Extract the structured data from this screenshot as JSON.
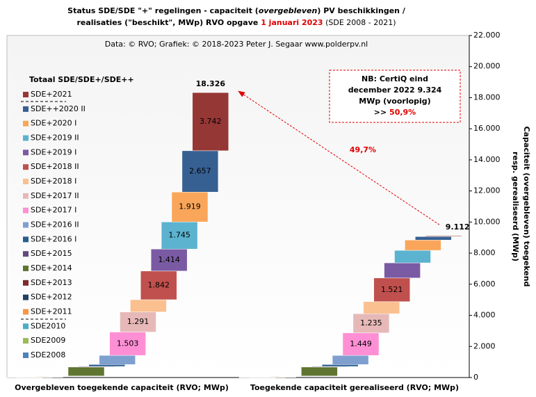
{
  "chart_data": {
    "type": "waterfall",
    "title": [
      "Status SDE/SDE \"+\" regelingen - capaciteit (",
      "overgebleven",
      ") PV beschikkingen /",
      "realisaties (\"beschikt\", MWp) RVO opgave ",
      "1 januari 2023",
      " (SDE 2008 - 2021)"
    ],
    "subtitle": "Data: © RVO;  Grafiek:  © 2018-2023 Peter J. Segaar www.polderpv.nl",
    "legend_title": "Totaal SDE/SDE+/SDE++",
    "y_label": [
      "Capaciteit (overgebleven) toegekend",
      "resp. gerealiseerd (MWp)"
    ],
    "categories": [
      "Overgebleven toegekende capaciteit (RVO; MWp)",
      "Toegekende capaciteit gerealiseerd (RVO; MWp)"
    ],
    "series": [
      {
        "name": "SDE2008",
        "color": "#4f81bd",
        "values": [
          20,
          20
        ],
        "value_labels": [
          null,
          null
        ]
      },
      {
        "name": "SDE2009",
        "color": "#9bbb59",
        "values": [
          5,
          5
        ],
        "value_labels": [
          null,
          null
        ]
      },
      {
        "name": "SDE2010",
        "color": "#4bacc6",
        "values": [
          10,
          10
        ],
        "value_labels": [
          null,
          null
        ]
      },
      {
        "name": "SDE+2011",
        "color": "#f79646",
        "values": [
          30,
          30
        ],
        "value_labels": [
          null,
          null
        ]
      },
      {
        "name": "SDE+2012",
        "color": "#244061",
        "values": [
          15,
          15
        ],
        "value_labels": [
          null,
          null
        ]
      },
      {
        "name": "SDE+2013",
        "color": "#7b2c2a",
        "values": [
          20,
          20
        ],
        "value_labels": [
          null,
          null
        ]
      },
      {
        "name": "SDE+2014",
        "color": "#5f7530",
        "values": [
          575,
          575
        ],
        "value_labels": [
          null,
          null
        ]
      },
      {
        "name": "SDE+2015",
        "color": "#604a7b",
        "values": [
          40,
          39
        ],
        "value_labels": [
          null,
          null
        ]
      },
      {
        "name": "SDE+2016 I",
        "color": "#2a5d8f",
        "values": [
          122,
          122
        ],
        "value_labels": [
          null,
          null
        ]
      },
      {
        "name": "SDE+2016 II",
        "color": "#7f9fcf",
        "values": [
          586,
          585
        ],
        "value_labels": [
          null,
          null
        ]
      },
      {
        "name": "SDE+2017 I",
        "color": "#ff8fd5",
        "values": [
          1503,
          1449
        ],
        "value_labels": [
          "1.503",
          "1.449"
        ]
      },
      {
        "name": "SDE+2017 II",
        "color": "#e6b9b8",
        "values": [
          1291,
          1235
        ],
        "value_labels": [
          "1.291",
          "1.235"
        ]
      },
      {
        "name": "SDE+2018 I",
        "color": "#fac090",
        "values": [
          790,
          776
        ],
        "value_labels": [
          null,
          null
        ]
      },
      {
        "name": "SDE+2018 II",
        "color": "#c0504d",
        "values": [
          1842,
          1521
        ],
        "value_labels": [
          "1.842",
          "1.521"
        ]
      },
      {
        "name": "SDE+2019 I",
        "color": "#7a5ba3",
        "values": [
          1414,
          972
        ],
        "value_labels": [
          "1.414",
          null
        ]
      },
      {
        "name": "SDE+2019 II",
        "color": "#5bb3cf",
        "values": [
          1745,
          804
        ],
        "value_labels": [
          "1.745",
          null
        ]
      },
      {
        "name": "SDE+2020 I",
        "color": "#f9a65a",
        "values": [
          1919,
          665
        ],
        "value_labels": [
          "1.919",
          null
        ]
      },
      {
        "name": "SDE++2020 II",
        "color": "#376092",
        "values": [
          2657,
          223
        ],
        "value_labels": [
          "2.657",
          null
        ]
      },
      {
        "name": "SDE+2021",
        "color": "#953735",
        "values": [
          3742,
          46
        ],
        "value_labels": [
          "3.742",
          null
        ]
      }
    ],
    "totals": [
      {
        "value": 18326,
        "label": "18.326"
      },
      {
        "value": 9112,
        "label": "9.112"
      }
    ],
    "annotation": "49,7%",
    "note": [
      "NB: CertiQ eind",
      "december 2022 9.324",
      "MWp (voorlopig)",
      ">> ",
      "50,9%"
    ],
    "ylim": [
      0,
      22000
    ],
    "yticks": [
      {
        "value": 0,
        "label": "0"
      },
      {
        "value": 2000,
        "label": "2.000"
      },
      {
        "value": 4000,
        "label": "4.000"
      },
      {
        "value": 6000,
        "label": "6.000"
      },
      {
        "value": 8000,
        "label": "8.000"
      },
      {
        "value": 10000,
        "label": "10.000"
      },
      {
        "value": 12000,
        "label": "12.000"
      },
      {
        "value": 14000,
        "label": "14.000"
      },
      {
        "value": 16000,
        "label": "16.000"
      },
      {
        "value": 18000,
        "label": "18.000"
      },
      {
        "value": 20000,
        "label": "20.000"
      },
      {
        "value": 22000,
        "label": "22.000"
      }
    ]
  }
}
